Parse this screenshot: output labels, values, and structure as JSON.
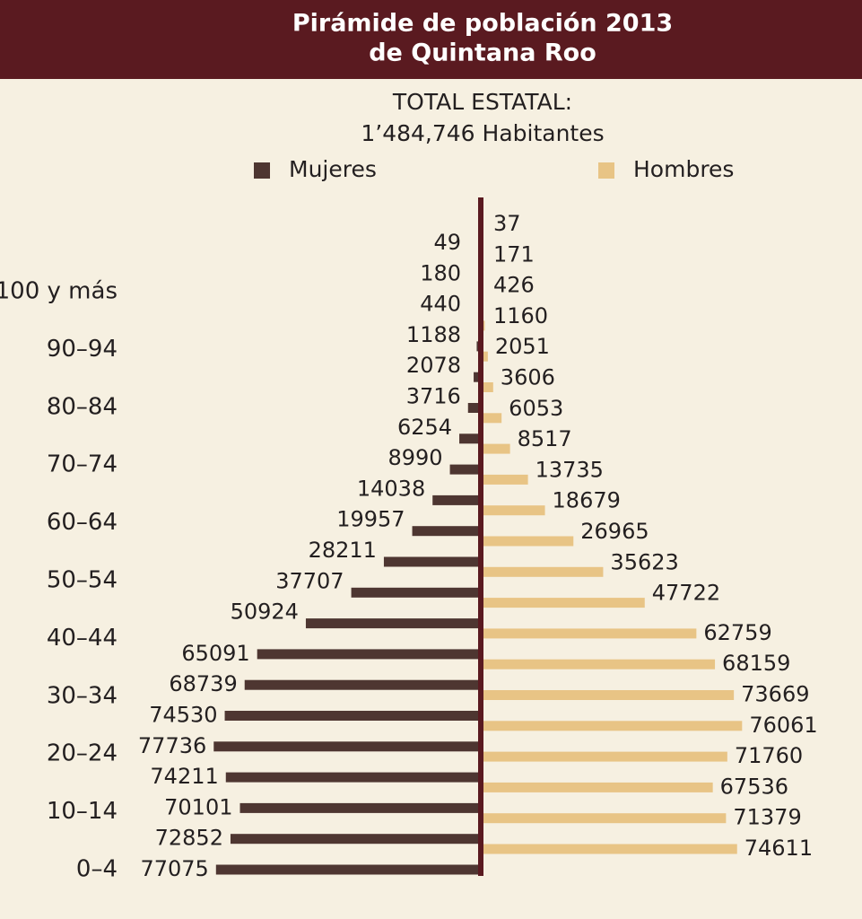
{
  "chart_data": {
    "type": "pyramid",
    "title": [
      "Pirámide de población 2013",
      "de Quintana Roo"
    ],
    "subtitle": [
      "TOTAL ESTATAL:",
      "1’484,746 Habitantes"
    ],
    "categories": [
      "0–4",
      null,
      "10–14",
      null,
      "20–24",
      null,
      "30–34",
      null,
      "40–44",
      null,
      "50–54",
      null,
      "60–64",
      null,
      "70–74",
      null,
      "80–84",
      null,
      "90–94",
      null,
      "100 y más"
    ],
    "series": [
      {
        "name": "Mujeres",
        "color": "#4e3631",
        "side": "left",
        "values": [
          77075,
          72852,
          70101,
          74211,
          77736,
          74530,
          68739,
          65091,
          50924,
          37707,
          28211,
          19957,
          14038,
          8990,
          6254,
          3716,
          2078,
          1188,
          440,
          180,
          49
        ]
      },
      {
        "name": "Hombres",
        "color": "#e8c485",
        "side": "right",
        "values": [
          74611,
          71379,
          67536,
          71760,
          76061,
          73669,
          68159,
          62759,
          47722,
          35623,
          26965,
          18679,
          13735,
          8517,
          6053,
          3606,
          2051,
          1160,
          426,
          171,
          37
        ]
      }
    ]
  }
}
